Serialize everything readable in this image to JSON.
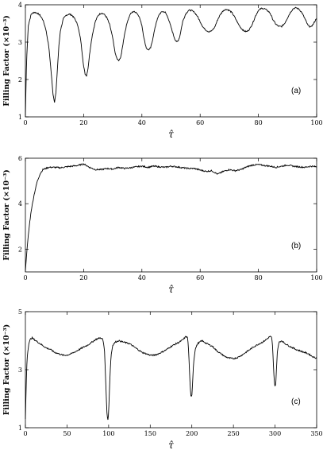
{
  "chart_data": [
    {
      "type": "line",
      "panel_label": "(a)",
      "ylabel": "Filling Factor (×10⁻³)",
      "xlabel": "τ̂",
      "xlim": [
        0,
        100
      ],
      "ylim": [
        1,
        4
      ],
      "xticks": [
        0,
        20,
        40,
        60,
        80,
        100
      ],
      "yticks": [
        1,
        2,
        3,
        4
      ],
      "grid": false,
      "kind": "oscillatory",
      "series": [
        {
          "x": [
            0,
            0.4,
            1,
            2,
            3,
            4,
            5,
            6,
            7,
            8,
            8.5,
            9,
            9.5,
            10,
            10.5,
            11,
            11.5,
            12,
            13,
            14,
            15,
            16,
            17,
            18,
            19,
            19.5,
            20,
            20.5,
            21,
            21.5,
            22,
            22.5,
            23,
            24,
            25,
            26,
            27,
            28,
            29,
            30,
            30.5,
            31,
            31.5,
            32,
            32.5,
            33,
            33.5,
            34,
            35,
            36,
            37,
            38,
            39,
            40,
            40.5,
            41,
            41.5,
            42,
            42.5,
            43,
            43.5,
            44,
            45,
            46,
            47,
            48,
            49,
            50,
            51,
            51.5,
            52,
            52.5,
            53,
            53.5,
            54,
            55,
            56,
            57,
            58,
            59,
            60,
            61,
            62,
            63,
            64,
            65,
            66,
            67,
            68,
            69,
            70,
            71,
            72,
            73,
            74,
            75,
            76,
            77,
            78,
            79,
            80,
            81,
            82,
            83,
            84,
            85,
            86,
            87,
            88,
            89,
            90,
            91,
            92,
            93,
            94,
            95,
            96,
            97,
            98,
            99,
            100
          ],
          "y": [
            1.05,
            2.5,
            3.45,
            3.75,
            3.8,
            3.78,
            3.72,
            3.6,
            3.35,
            2.9,
            2.5,
            2.05,
            1.6,
            1.4,
            1.65,
            2.3,
            2.9,
            3.3,
            3.62,
            3.72,
            3.75,
            3.72,
            3.62,
            3.45,
            3.05,
            2.7,
            2.35,
            2.15,
            2.1,
            2.3,
            2.65,
            2.95,
            3.2,
            3.55,
            3.72,
            3.78,
            3.75,
            3.65,
            3.45,
            3.1,
            2.85,
            2.65,
            2.55,
            2.5,
            2.55,
            2.7,
            2.95,
            3.2,
            3.55,
            3.75,
            3.82,
            3.8,
            3.7,
            3.45,
            3.2,
            3.0,
            2.85,
            2.8,
            2.8,
            2.85,
            3.0,
            3.2,
            3.55,
            3.75,
            3.82,
            3.8,
            3.65,
            3.4,
            3.15,
            3.05,
            3.0,
            3.05,
            3.15,
            3.35,
            3.55,
            3.75,
            3.85,
            3.85,
            3.8,
            3.7,
            3.55,
            3.4,
            3.32,
            3.28,
            3.3,
            3.4,
            3.6,
            3.75,
            3.85,
            3.88,
            3.85,
            3.78,
            3.65,
            3.5,
            3.38,
            3.3,
            3.28,
            3.35,
            3.5,
            3.7,
            3.85,
            3.9,
            3.9,
            3.85,
            3.78,
            3.6,
            3.48,
            3.42,
            3.42,
            3.5,
            3.65,
            3.8,
            3.9,
            3.92,
            3.88,
            3.78,
            3.62,
            3.45,
            3.4,
            3.5,
            3.65
          ]
        }
      ]
    },
    {
      "type": "line",
      "panel_label": "(b)",
      "ylabel": "Filling Factor (×10⁻³)",
      "xlabel": "τ̂",
      "xlim": [
        0,
        100
      ],
      "ylim": [
        1,
        6
      ],
      "xticks": [
        0,
        20,
        40,
        60,
        80,
        100
      ],
      "yticks": [
        2,
        4,
        6
      ],
      "grid": false,
      "kind": "rise",
      "series": [
        {
          "x": [
            0,
            0.5,
            1,
            1.5,
            2,
            3,
            4,
            5,
            6,
            7,
            8,
            10,
            12,
            14,
            16,
            18,
            20,
            22,
            24,
            26,
            28,
            30,
            32,
            34,
            36,
            38,
            40,
            42,
            44,
            46,
            48,
            50,
            52,
            54,
            56,
            58,
            60,
            62,
            64,
            66,
            68,
            70,
            72,
            74,
            76,
            78,
            80,
            82,
            84,
            86,
            88,
            90,
            92,
            94,
            96,
            98,
            100
          ],
          "y": [
            1.05,
            1.9,
            2.6,
            3.2,
            3.7,
            4.4,
            4.95,
            5.3,
            5.5,
            5.55,
            5.6,
            5.6,
            5.58,
            5.62,
            5.65,
            5.68,
            5.75,
            5.6,
            5.5,
            5.5,
            5.55,
            5.52,
            5.6,
            5.55,
            5.58,
            5.62,
            5.65,
            5.6,
            5.65,
            5.62,
            5.6,
            5.65,
            5.62,
            5.58,
            5.55,
            5.55,
            5.48,
            5.42,
            5.45,
            5.3,
            5.42,
            5.5,
            5.45,
            5.5,
            5.62,
            5.7,
            5.72,
            5.68,
            5.65,
            5.6,
            5.65,
            5.7,
            5.65,
            5.62,
            5.6,
            5.65,
            5.62
          ]
        }
      ]
    },
    {
      "type": "line",
      "panel_label": "(c)",
      "ylabel": "Filling Factor (×10⁻³)",
      "xlabel": "τ̂",
      "xlim": [
        0,
        350
      ],
      "ylim": [
        1,
        5
      ],
      "xticks": [
        0,
        50,
        100,
        150,
        200,
        250,
        300,
        350
      ],
      "yticks": [
        1,
        3,
        5
      ],
      "grid": false,
      "kind": "spikes",
      "series": [
        {
          "x": [
            0,
            1,
            2,
            4,
            6,
            8,
            10,
            15,
            20,
            25,
            30,
            35,
            40,
            45,
            50,
            55,
            60,
            65,
            70,
            75,
            80,
            85,
            90,
            93,
            95,
            96,
            97,
            98,
            99,
            100,
            101,
            102,
            103,
            105,
            108,
            112,
            118,
            125,
            130,
            135,
            140,
            145,
            150,
            155,
            160,
            165,
            170,
            175,
            180,
            185,
            190,
            193,
            195,
            196,
            197,
            198,
            199,
            200,
            201,
            202,
            204,
            207,
            212,
            218,
            225,
            230,
            235,
            240,
            245,
            250,
            255,
            260,
            265,
            270,
            275,
            280,
            285,
            290,
            294,
            296,
            297,
            298,
            299,
            300,
            301,
            302,
            303,
            305,
            308,
            312,
            318,
            325,
            330,
            335,
            340,
            345,
            350
          ],
          "y": [
            1.3,
            2.5,
            3.4,
            3.9,
            4.05,
            4.1,
            4.05,
            3.95,
            3.85,
            3.75,
            3.7,
            3.6,
            3.55,
            3.5,
            3.5,
            3.55,
            3.62,
            3.7,
            3.78,
            3.85,
            3.95,
            4.05,
            4.1,
            4.05,
            3.7,
            3.0,
            2.2,
            1.5,
            1.25,
            1.5,
            2.3,
            3.0,
            3.5,
            3.85,
            3.95,
            4.0,
            3.95,
            3.9,
            3.8,
            3.7,
            3.6,
            3.55,
            3.5,
            3.5,
            3.55,
            3.62,
            3.7,
            3.8,
            3.88,
            3.95,
            4.05,
            4.15,
            4.1,
            3.7,
            3.1,
            2.4,
            2.05,
            2.1,
            2.6,
            3.2,
            3.7,
            3.9,
            4.0,
            3.9,
            3.8,
            3.65,
            3.55,
            3.45,
            3.4,
            3.38,
            3.42,
            3.5,
            3.6,
            3.7,
            3.8,
            3.88,
            3.95,
            4.05,
            4.15,
            4.1,
            3.8,
            3.2,
            2.6,
            2.4,
            2.6,
            3.2,
            3.7,
            3.95,
            4.0,
            3.9,
            3.8,
            3.7,
            3.65,
            3.6,
            3.55,
            3.45,
            3.4
          ]
        }
      ]
    }
  ]
}
